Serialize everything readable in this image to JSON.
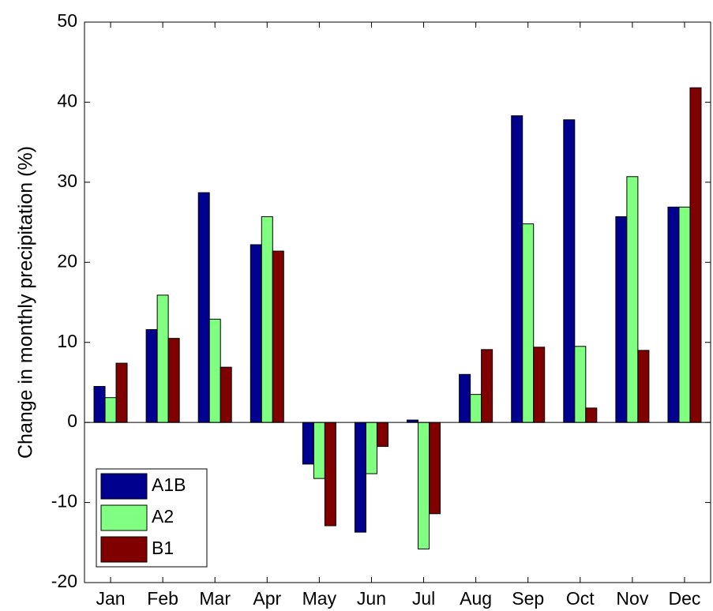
{
  "chart_data": {
    "type": "bar",
    "y_label": "Change in monthly precipitation (%)",
    "categories": [
      "Jan",
      "Feb",
      "Mar",
      "Apr",
      "May",
      "Jun",
      "Jul",
      "Aug",
      "Sep",
      "Oct",
      "Nov",
      "Dec"
    ],
    "series": [
      {
        "name": "A1B",
        "color": "#00008f",
        "values": [
          4.5,
          11.6,
          28.7,
          22.2,
          -5.2,
          -13.7,
          0.3,
          6.0,
          38.3,
          37.8,
          25.7,
          26.9
        ]
      },
      {
        "name": "A2",
        "color": "#80ff80",
        "values": [
          3.1,
          15.9,
          12.9,
          25.7,
          -7.0,
          -6.4,
          -15.8,
          3.5,
          24.8,
          9.5,
          30.7,
          26.9
        ]
      },
      {
        "name": "B1",
        "color": "#800000",
        "values": [
          7.4,
          10.5,
          6.9,
          21.4,
          -12.9,
          -3.0,
          -11.4,
          9.1,
          9.4,
          1.8,
          9.0,
          41.8
        ]
      }
    ],
    "ylim": [
      -20,
      50
    ],
    "yticks": [
      -20,
      -10,
      0,
      10,
      20,
      30,
      40,
      50
    ],
    "legend": "lower left",
    "grid": false
  }
}
